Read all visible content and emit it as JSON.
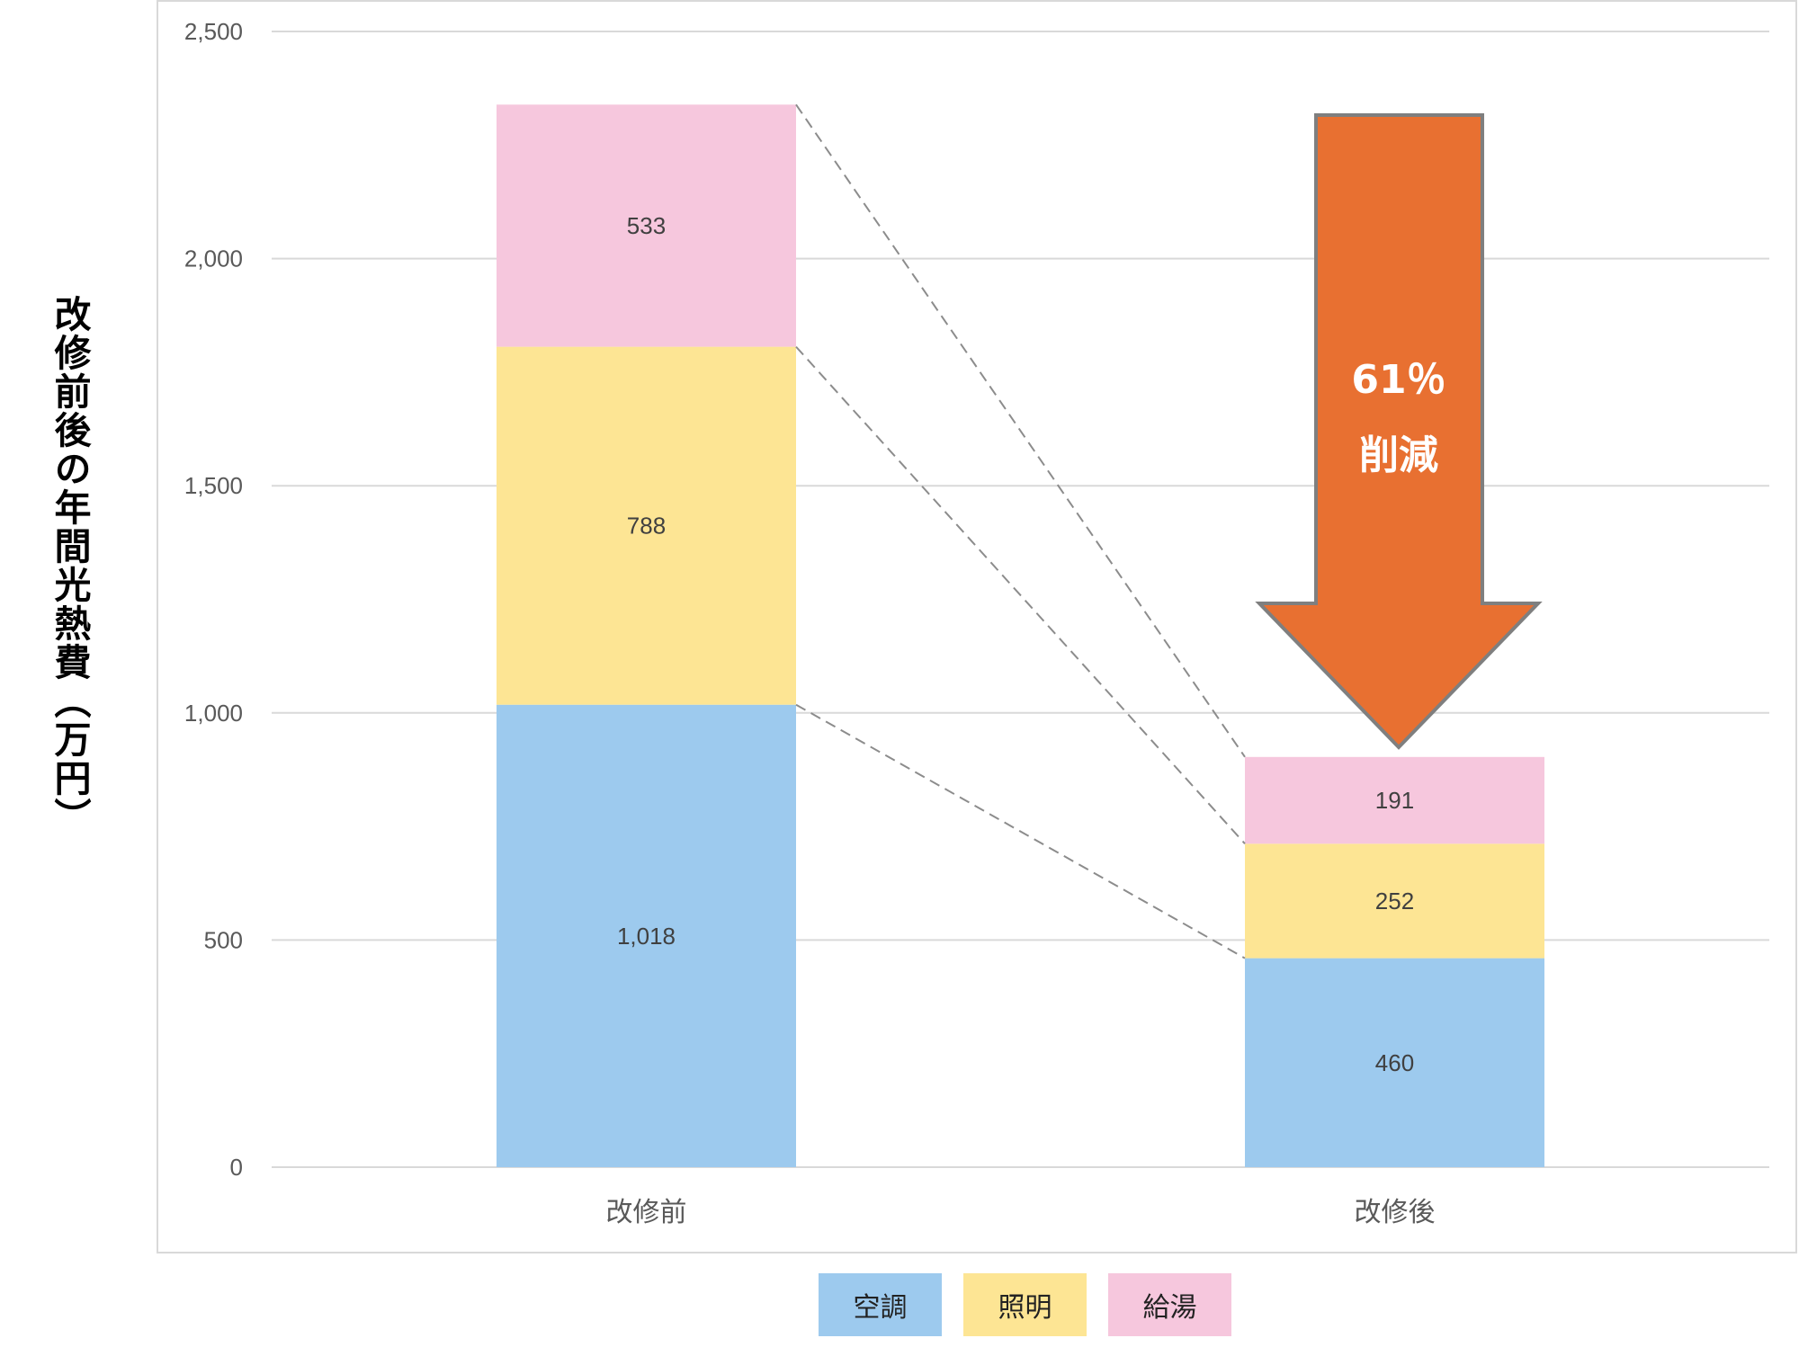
{
  "chart_data": {
    "type": "bar",
    "stacked": true,
    "title": "",
    "xlabel": "",
    "ylabel": "改修前後の年間光熱費（万円）",
    "categories": [
      "改修前",
      "改修後"
    ],
    "series": [
      {
        "name": "空調",
        "color": "#9DCAEE",
        "values": [
          1018,
          460
        ],
        "labels": [
          "1,018",
          "460"
        ]
      },
      {
        "name": "照明",
        "color": "#FDE594",
        "values": [
          788,
          252
        ],
        "labels": [
          "788",
          "252"
        ]
      },
      {
        "name": "給湯",
        "color": "#F6C7DD",
        "values": [
          533,
          191
        ],
        "labels": [
          "533",
          "191"
        ]
      }
    ],
    "ylim": [
      0,
      2500
    ],
    "yticks": [
      0,
      500,
      1000,
      1500,
      2000,
      2500
    ],
    "ytick_labels": [
      "0",
      "500",
      "1,000",
      "1,500",
      "2,000",
      "2,500"
    ],
    "grid": true,
    "legend_position": "bottom",
    "annotation": {
      "type": "down-arrow",
      "line1": "61％",
      "line2": "削減",
      "fill": "#E87031",
      "stroke": "#7F7F7F"
    },
    "connector_lines": "dashed lines linking segment tops of 改修前 to 改修後"
  },
  "colors": {
    "grid": "#d9d9d9",
    "tick_text": "#595959",
    "data_label": "#404040",
    "connector": "#8c8c8c"
  }
}
